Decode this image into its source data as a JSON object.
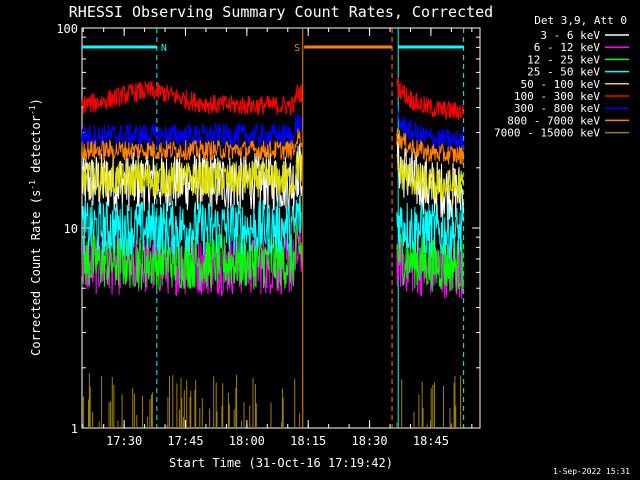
{
  "chart_data": {
    "type": "line",
    "title": "RHESSI Observing Summary Count Rates, Corrected",
    "xlabel": "Start Time (31-Oct-16 17:19:42)",
    "ylabel": "Corrected Count Rate (s⁻¹ detector⁻¹)",
    "ylabel_text": "Corrected Count Rate (s",
    "ylabel_sup1": "-1",
    "ylabel_mid": " detector",
    "ylabel_sup2": "-1",
    "ylabel_end": ")",
    "y_scale": "log",
    "ylim": [
      1,
      100
    ],
    "xlim": [
      "17:19:42",
      "18:57:00"
    ],
    "x_ticks": [
      "17:30",
      "17:45",
      "18:00",
      "18:15",
      "18:30",
      "18:45"
    ],
    "y_ticks": [
      "1",
      "10",
      "100"
    ],
    "legend_title": "Det 3,9, Att 0",
    "legend_placement": "right",
    "footer": "1-Sep-2022 15:31",
    "segments": [
      {
        "start": "17:19:42",
        "end": "18:13:30"
      },
      {
        "start": "18:36:40",
        "end": "18:53:00"
      }
    ],
    "flags": [
      {
        "label": "N",
        "start": "17:19:42",
        "end": "17:38:00",
        "color": "#00ffff"
      },
      {
        "label": "S",
        "start": "18:14:00",
        "end": "18:35:30",
        "color": "#ff8000"
      },
      {
        "label": "",
        "start": "18:37:00",
        "end": "18:53:00",
        "color": "#00ffff"
      }
    ],
    "vlines": [
      {
        "time": "17:38:00",
        "color": "#00ffff",
        "dash": true
      },
      {
        "time": "18:13:40",
        "color": "#ff8000",
        "dash": false
      },
      {
        "time": "18:35:30",
        "color": "#ff8000",
        "dash": true
      },
      {
        "time": "18:37:00",
        "color": "#00ffff",
        "dash": false
      },
      {
        "time": "18:53:00",
        "color": "#00ffff",
        "dash": true
      }
    ],
    "series": [
      {
        "name": "3 - 6 keV",
        "color": "#ffffff",
        "seg1_level": 17,
        "seg1_noise": 0.15,
        "seg2_start": 22,
        "seg2_level": 15,
        "seg2_noise": 0.15
      },
      {
        "name": "6 - 12 keV",
        "color": "#ff00ff",
        "seg1_level": 6.5,
        "seg1_noise": 0.15,
        "seg2_start": 7,
        "seg2_level": 6.2,
        "seg2_noise": 0.14
      },
      {
        "name": "12 - 25 keV",
        "color": "#00ff00",
        "seg1_level": 6.8,
        "seg1_noise": 0.14,
        "seg2_start": 7.5,
        "seg2_level": 6.5,
        "seg2_noise": 0.13
      },
      {
        "name": "25 - 50 keV",
        "color": "#00ffff",
        "seg1_level": 10,
        "seg1_noise": 0.14,
        "seg2_start": 11,
        "seg2_level": 9.5,
        "seg2_noise": 0.13
      },
      {
        "name": "50 - 100 keV",
        "color": "#e0e000",
        "seg1_level": 17.5,
        "seg1_noise": 0.09,
        "seg2_start": 20,
        "seg2_level": 16,
        "seg2_noise": 0.09
      },
      {
        "name": "100 - 300 keV",
        "color": "#ff0000",
        "seg1_level": 41,
        "seg1_noise": 0.05,
        "seg2_start": 52,
        "seg2_level": 38,
        "seg2_noise": 0.05
      },
      {
        "name": "300 - 800 keV",
        "color": "#0000ff",
        "seg1_level": 29,
        "seg1_noise": 0.06,
        "seg2_start": 35,
        "seg2_level": 27,
        "seg2_noise": 0.06
      },
      {
        "name": "800 - 7000 keV",
        "color": "#ff8000",
        "seg1_level": 24.5,
        "seg1_noise": 0.05,
        "seg2_start": 29,
        "seg2_level": 23,
        "seg2_noise": 0.05
      },
      {
        "name": "7000 - 15000 keV",
        "color": "#a08000",
        "spiky": true,
        "base": 1,
        "spike_max": 1.9
      }
    ]
  }
}
